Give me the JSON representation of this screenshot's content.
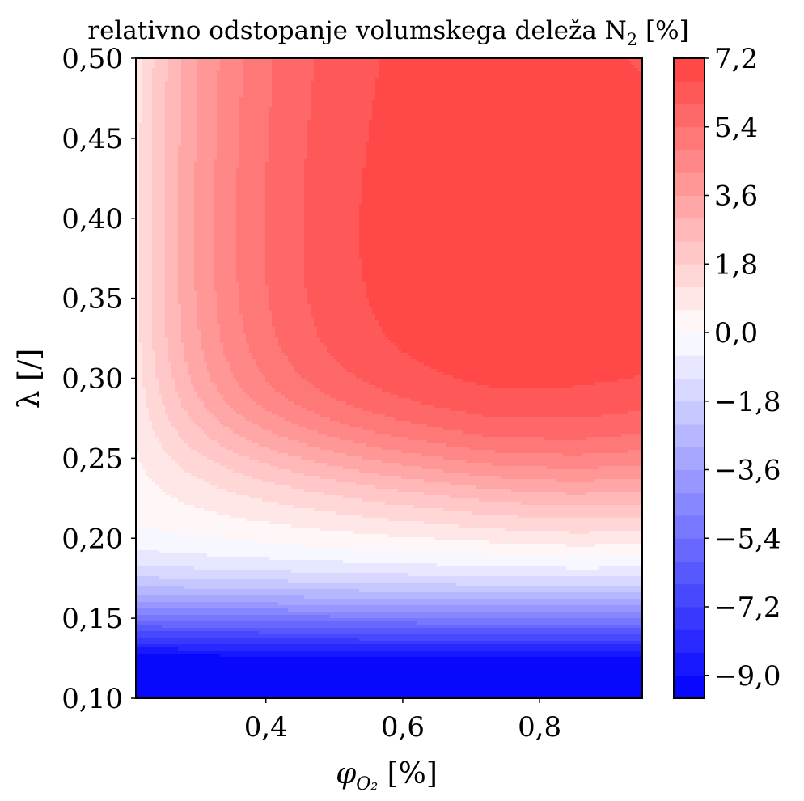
{
  "chart_data": {
    "type": "contourf",
    "title": "relativno odstopanje volumskega deleža N",
    "title_subscript": "2",
    "title_unit": "[%]",
    "xlabel": "φ",
    "xlabel_subscript": "O₂",
    "xlabel_unit": "[%]",
    "ylabel": "λ [/]",
    "xlim": [
      0.21,
      0.95
    ],
    "ylim": [
      0.1,
      0.5
    ],
    "x_ticks": [
      {
        "value": 0.4,
        "label": "0,4"
      },
      {
        "value": 0.6,
        "label": "0,6"
      },
      {
        "value": 0.8,
        "label": "0,8"
      }
    ],
    "y_ticks": [
      {
        "value": 0.1,
        "label": "0,10"
      },
      {
        "value": 0.15,
        "label": "0,15"
      },
      {
        "value": 0.2,
        "label": "0,20"
      },
      {
        "value": 0.25,
        "label": "0,25"
      },
      {
        "value": 0.3,
        "label": "0,30"
      },
      {
        "value": 0.35,
        "label": "0,35"
      },
      {
        "value": 0.4,
        "label": "0,40"
      },
      {
        "value": 0.45,
        "label": "0,45"
      },
      {
        "value": 0.5,
        "label": "0,50"
      }
    ],
    "colorbar": {
      "colormap": "bwr",
      "min": -9.6,
      "max": 7.2,
      "levels": 28,
      "ticks": [
        {
          "value": -9.0,
          "label": "−9,0"
        },
        {
          "value": -7.2,
          "label": "−7,2"
        },
        {
          "value": -5.4,
          "label": "−5,4"
        },
        {
          "value": -3.6,
          "label": "−3,6"
        },
        {
          "value": -1.8,
          "label": "−1,8"
        },
        {
          "value": 0.0,
          "label": "0,0"
        },
        {
          "value": 1.8,
          "label": "1,8"
        },
        {
          "value": 3.6,
          "label": "3,6"
        },
        {
          "value": 5.4,
          "label": "5,4"
        },
        {
          "value": 7.2,
          "label": "7,2"
        }
      ]
    },
    "grid": false
  }
}
